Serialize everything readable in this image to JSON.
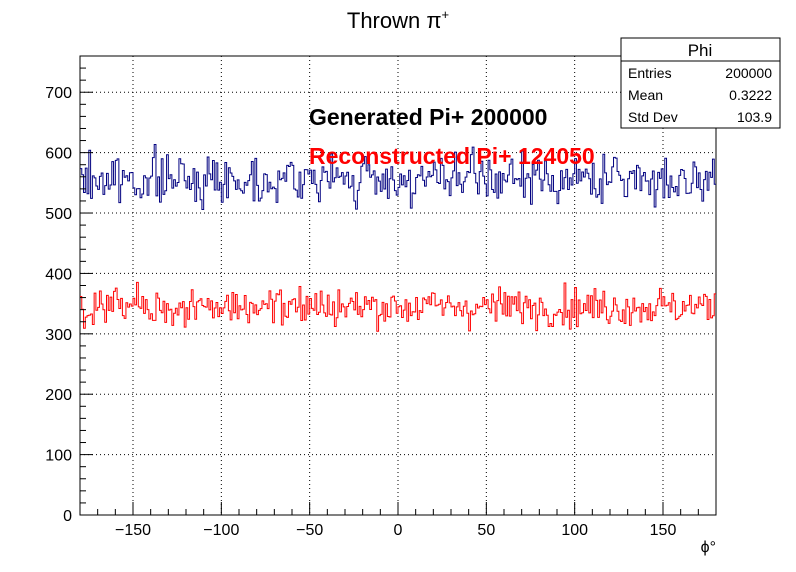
{
  "chart_data": {
    "type": "histogram",
    "title_main": "Thrown π",
    "title_sup": "+",
    "xlabel": "ϕ°",
    "ylabel": "",
    "xlim": [
      -180,
      180
    ],
    "ylim": [
      0,
      760
    ],
    "grid": true,
    "x_ticks": [
      -150,
      -100,
      -50,
      0,
      50,
      100,
      150
    ],
    "x_tick_labels": [
      "−150",
      "−100",
      "−50",
      "0",
      "50",
      "100",
      "150"
    ],
    "y_ticks": [
      0,
      100,
      200,
      300,
      400,
      500,
      600,
      700
    ],
    "y_tick_labels": [
      "0",
      "100",
      "200",
      "300",
      "400",
      "500",
      "600",
      "700"
    ],
    "bins": 360,
    "series": [
      {
        "label_text": "Generated Pi+ 200000",
        "color": "#000080",
        "label_color": "#000000",
        "mean_level": 556,
        "spread": 28,
        "seed": 7
      },
      {
        "label_text": "Reconstructed Pi+ 124050",
        "color": "#ff0000",
        "label_color": "#ff0000",
        "mean_level": 345,
        "spread": 22,
        "seed": 31
      }
    ],
    "stats_box": {
      "name": "Phi",
      "rows": [
        {
          "label": "Entries",
          "value": "200000"
        },
        {
          "label": "Mean",
          "value": "0.3222"
        },
        {
          "label": "Std Dev",
          "value": "103.9"
        }
      ]
    }
  }
}
